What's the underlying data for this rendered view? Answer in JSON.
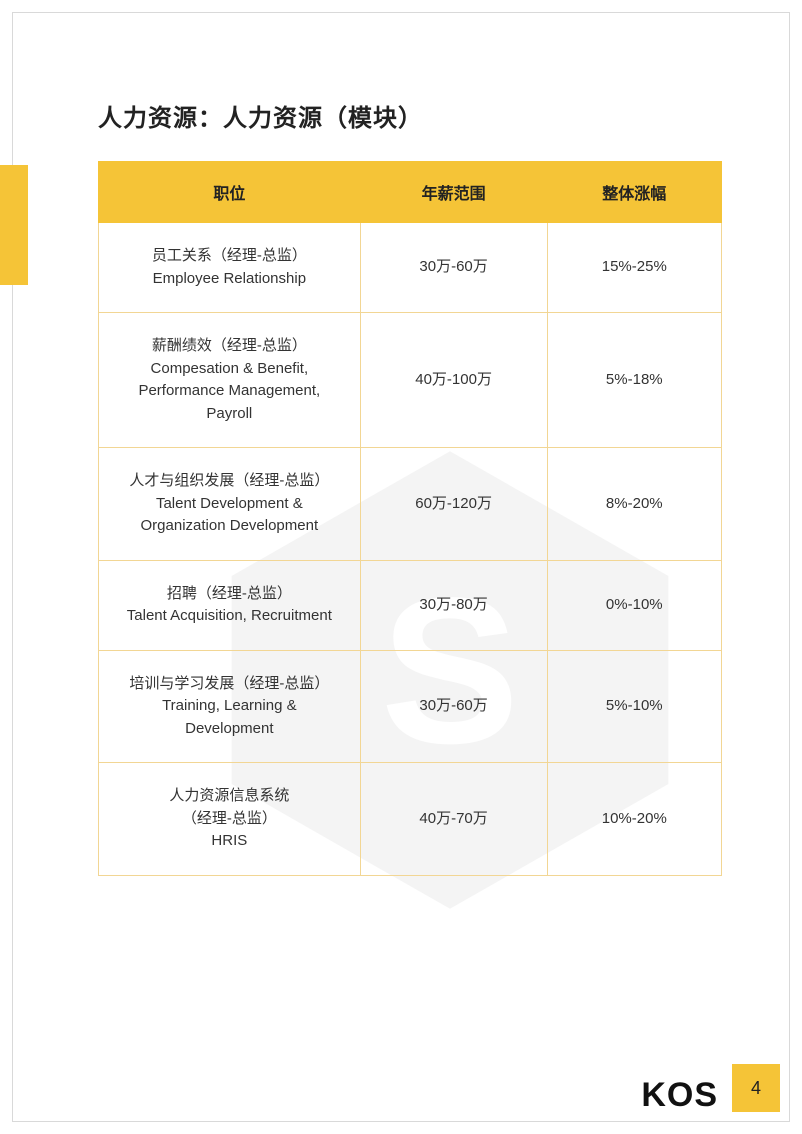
{
  "colors": {
    "accent": "#f5c437",
    "cell_border": "#f2d694"
  },
  "title": "人力资源：人力资源（模块）",
  "table": {
    "columns": [
      "职位",
      "年薪范围",
      "整体涨幅"
    ],
    "col_widths_pct": [
      42,
      30,
      28
    ],
    "header_fontsize": 16,
    "cell_fontsize": 15,
    "rows": [
      {
        "position": "员工关系（经理-总监）\nEmployee Relationship",
        "salary": "30万-60万",
        "increase": "15%-25%"
      },
      {
        "position": "薪酬绩效（经理-总监）\nCompesation & Benefit,\nPerformance Management,\nPayroll",
        "salary": "40万-100万",
        "increase": "5%-18%"
      },
      {
        "position": "人才与组织发展（经理-总监）\nTalent Development &\nOrganization Development",
        "salary": "60万-120万",
        "increase": "8%-20%"
      },
      {
        "position": "招聘（经理-总监）\nTalent Acquisition, Recruitment",
        "salary": "30万-80万",
        "increase": "0%-10%"
      },
      {
        "position": "培训与学习发展（经理-总监）\nTraining, Learning &\nDevelopment",
        "salary": "30万-60万",
        "increase": "5%-10%"
      },
      {
        "position": "人力资源信息系统\n（经理-总监）\nHRIS",
        "salary": "40万-70万",
        "increase": "10%-20%"
      }
    ]
  },
  "footer": {
    "logo_text": "KOS",
    "page_number": "4"
  }
}
